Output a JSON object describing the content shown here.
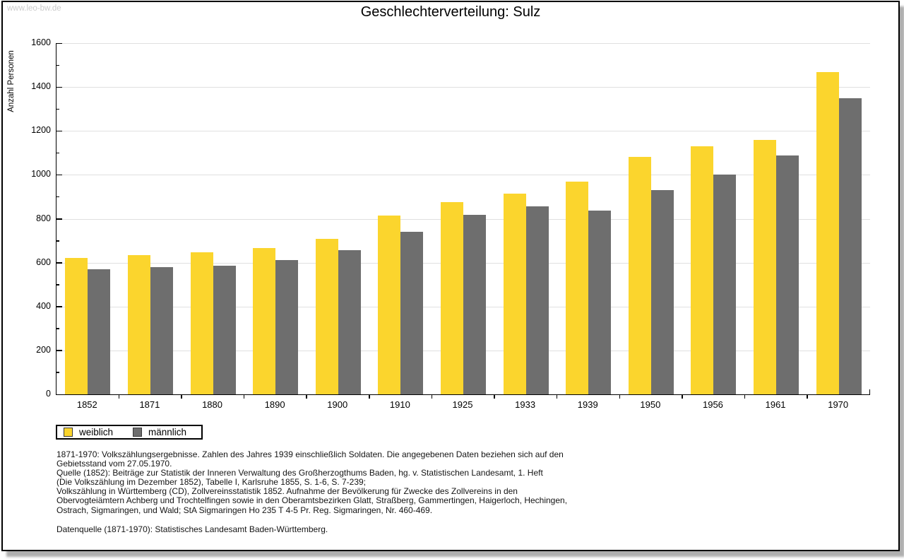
{
  "watermark": "www.leo-bw.de",
  "title": "Geschlechterverteilung: Sulz",
  "chart_data": {
    "type": "bar",
    "title": "Geschlechterverteilung: Sulz",
    "xlabel": "",
    "ylabel": "Anzahl Personen",
    "ylim": [
      0,
      1600
    ],
    "ytick_step": 200,
    "yminor_step": 100,
    "grid": true,
    "legend_position": "bottom-left",
    "categories": [
      "1852",
      "1871",
      "1880",
      "1890",
      "1900",
      "1910",
      "1925",
      "1933",
      "1939",
      "1950",
      "1956",
      "1961",
      "1970"
    ],
    "series": [
      {
        "name": "weiblich",
        "color": "#FBD52D",
        "values": [
          620,
          634,
          648,
          666,
          708,
          813,
          877,
          913,
          970,
          1083,
          1130,
          1160,
          1468
        ]
      },
      {
        "name": "männlich",
        "color": "#6E6E6E",
        "values": [
          569,
          580,
          585,
          611,
          658,
          739,
          818,
          856,
          838,
          929,
          1000,
          1088,
          1350
        ]
      }
    ]
  },
  "colors": {
    "grid": "#E0E0E0",
    "axis": "#000000",
    "watermark": "#CBCBCB"
  },
  "footnotes": {
    "lines": [
      "1871-1970: Volkszählungsergebnisse. Zahlen des Jahres 1939 einschließlich Soldaten. Die angegebenen Daten beziehen sich auf den",
      "Gebietsstand vom 27.05.1970.",
      "Quelle (1852): Beiträge zur Statistik der Inneren Verwaltung des Großherzogthums Baden, hg. v. Statistischen Landesamt, 1. Heft",
      "(Die Volkszählung im Dezember 1852), Tabelle I, Karlsruhe 1855, S. 1-6, S. 7-239;",
      "Volkszählung in Württemberg (CD), Zollvereinsstatistik 1852. Aufnahme der Bevölkerung für Zwecke des Zollvereins in den",
      "Obervogteiämtern Achberg und Trochtelfingen sowie in den Oberamtsbezirken Glatt, Straßberg, Gammertingen, Haigerloch, Hechingen,",
      "Ostrach, Sigmaringen, und Wald; StA Sigmaringen Ho 235 T 4-5 Pr. Reg. Sigmaringen, Nr. 460-469."
    ],
    "datasource": "Datenquelle (1871-1970): Statistisches Landesamt Baden-Württemberg."
  }
}
